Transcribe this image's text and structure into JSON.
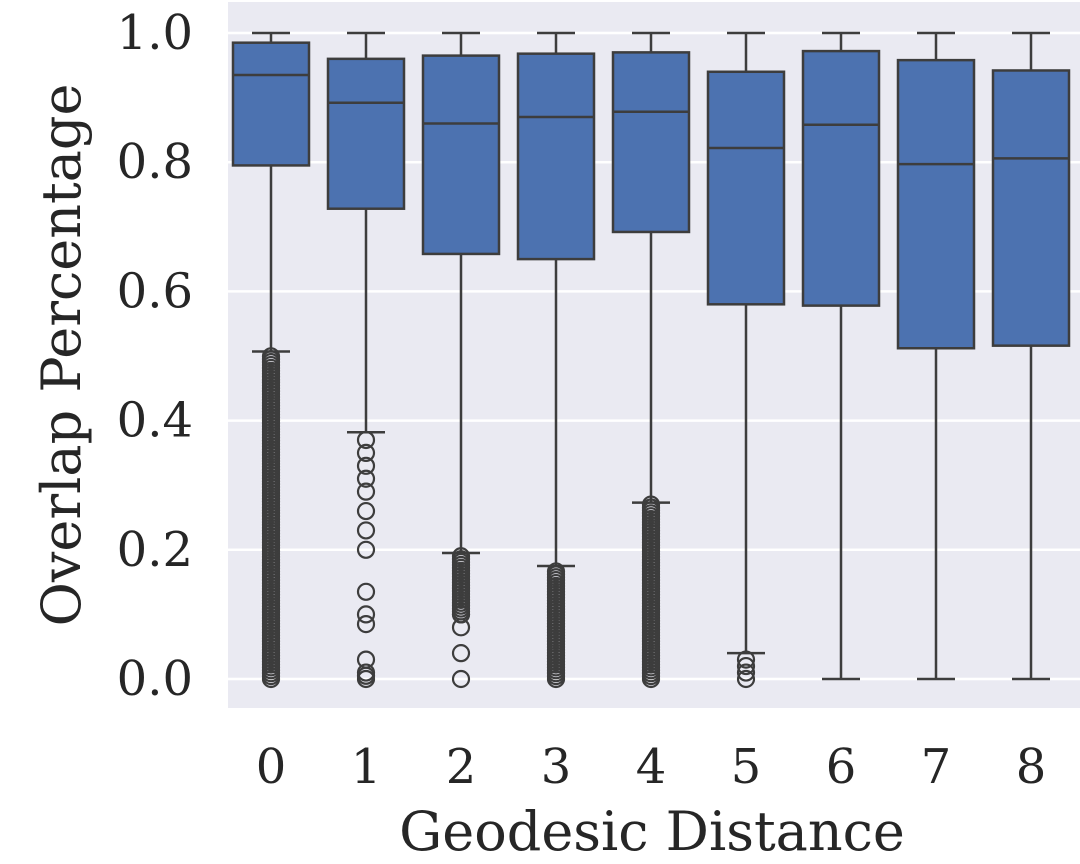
{
  "chart_data": {
    "type": "box",
    "xlabel": "Geodesic Distance",
    "ylabel": "Overlap Percentage",
    "categories": [
      "0",
      "1",
      "2",
      "3",
      "4",
      "5",
      "6",
      "7",
      "8"
    ],
    "yticks": [
      "0.0",
      "0.2",
      "0.4",
      "0.6",
      "0.8",
      "1.0"
    ],
    "ylim": [
      -0.05,
      1.045
    ],
    "grid": true,
    "colors": {
      "box_fill": "#4c72b0",
      "line": "#3d3d3d",
      "background": "#eaeaf2",
      "grid": "#ffffff"
    },
    "boxes": [
      {
        "category": "0",
        "whisker_low": 0.507,
        "q1": 0.795,
        "median": 0.935,
        "q3": 0.985,
        "whisker_high": 1.0,
        "outliers_range": [
          0.0,
          0.5
        ]
      },
      {
        "category": "1",
        "whisker_low": 0.382,
        "q1": 0.728,
        "median": 0.892,
        "q3": 0.96,
        "whisker_high": 1.0,
        "outliers": [
          0.0,
          0.005,
          0.01,
          0.03,
          0.085,
          0.1,
          0.135,
          0.2,
          0.23,
          0.26,
          0.29,
          0.31,
          0.33,
          0.35,
          0.37
        ]
      },
      {
        "category": "2",
        "whisker_low": 0.195,
        "q1": 0.658,
        "median": 0.86,
        "q3": 0.965,
        "whisker_high": 1.0,
        "outliers": [
          0.0,
          0.04,
          0.08,
          0.1
        ],
        "outliers_range": [
          0.1,
          0.19
        ]
      },
      {
        "category": "3",
        "whisker_low": 0.175,
        "q1": 0.65,
        "median": 0.87,
        "q3": 0.968,
        "whisker_high": 1.0,
        "outliers_range": [
          0.0,
          0.17
        ]
      },
      {
        "category": "4",
        "whisker_low": 0.273,
        "q1": 0.692,
        "median": 0.878,
        "q3": 0.97,
        "whisker_high": 1.0,
        "outliers_range": [
          0.0,
          0.27
        ]
      },
      {
        "category": "5",
        "whisker_low": 0.04,
        "q1": 0.58,
        "median": 0.822,
        "q3": 0.94,
        "whisker_high": 1.0,
        "outliers": [
          0.0,
          0.01,
          0.02,
          0.03
        ]
      },
      {
        "category": "6",
        "whisker_low": 0.0,
        "q1": 0.578,
        "median": 0.858,
        "q3": 0.972,
        "whisker_high": 1.0,
        "outliers": []
      },
      {
        "category": "7",
        "whisker_low": 0.0,
        "q1": 0.512,
        "median": 0.797,
        "q3": 0.958,
        "whisker_high": 1.0,
        "outliers": []
      },
      {
        "category": "8",
        "whisker_low": 0.0,
        "q1": 0.516,
        "median": 0.806,
        "q3": 0.942,
        "whisker_high": 1.0,
        "outliers": []
      }
    ]
  }
}
